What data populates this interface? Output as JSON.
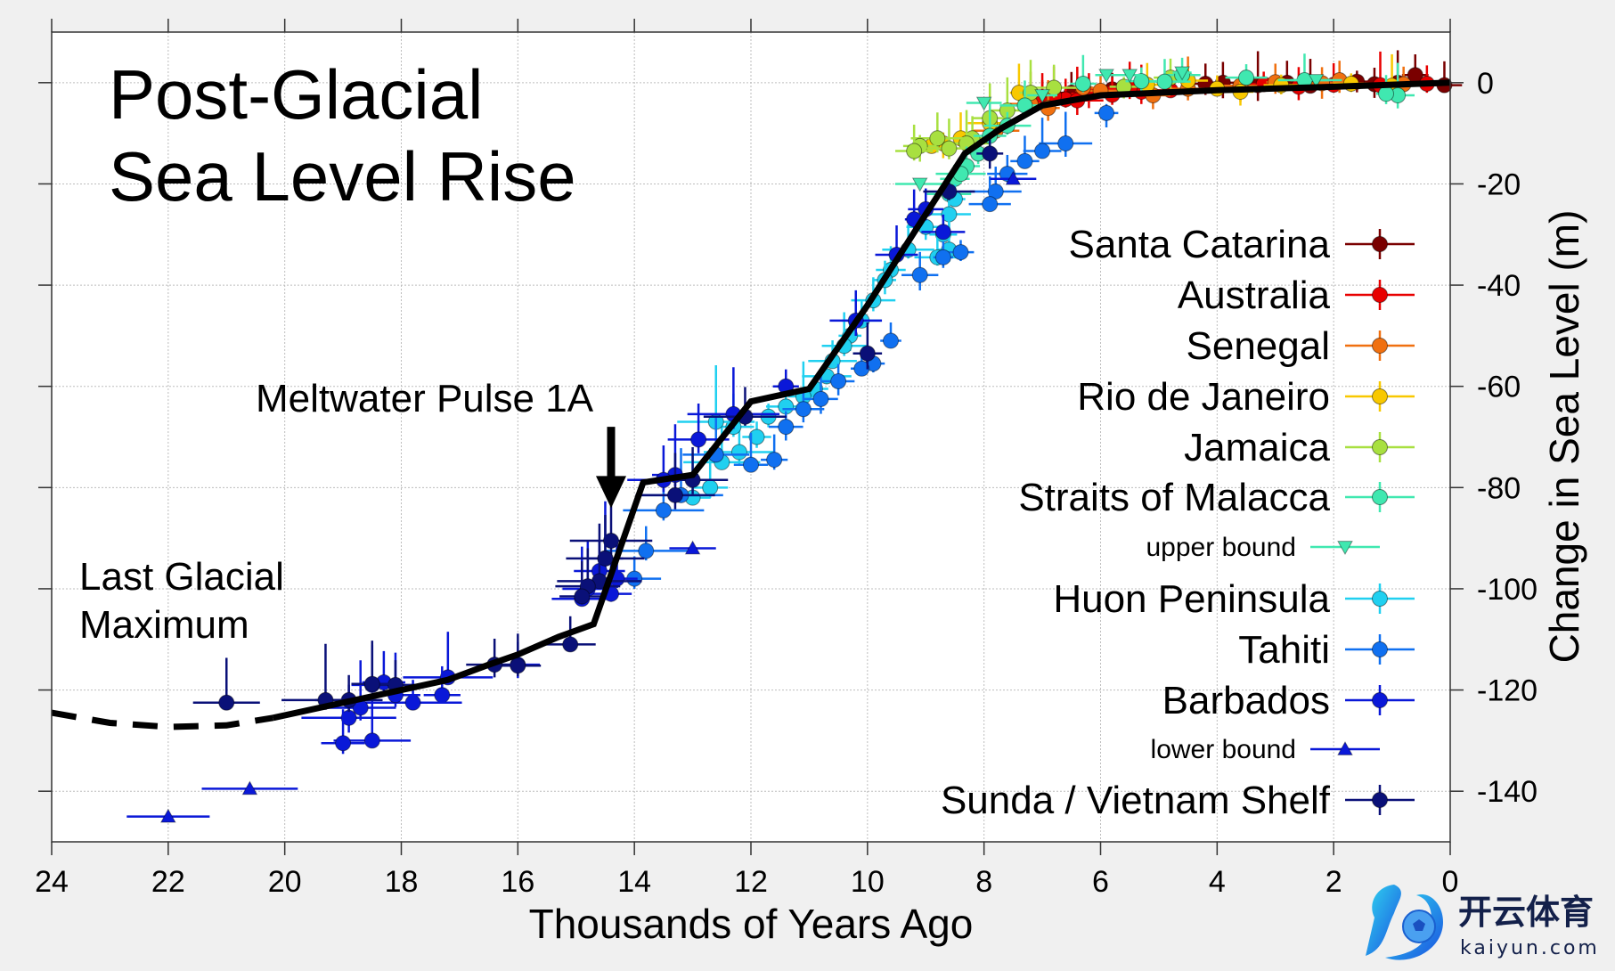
{
  "chart_data": {
    "type": "scatter",
    "title_lines": [
      "Post-Glacial",
      "Sea Level Rise"
    ],
    "xlabel": "Thousands of Years Ago",
    "ylabel": "Change in Sea Level (m)",
    "xlim": [
      24,
      0
    ],
    "ylim": [
      -150,
      10
    ],
    "x_ticks": [
      24,
      22,
      20,
      18,
      16,
      14,
      12,
      10,
      8,
      6,
      4,
      2,
      0
    ],
    "y_ticks": [
      0,
      -20,
      -40,
      -60,
      -80,
      -100,
      -120,
      -140
    ],
    "grid": true,
    "legend_position": "right",
    "annotations": [
      {
        "id": "mwp",
        "text": "Meltwater Pulse 1A",
        "arrow_x": 14.4,
        "arrow_y_from": -68,
        "arrow_y_to": -83
      },
      {
        "id": "lgm",
        "text_lines": [
          "Last Glacial",
          "Maximum"
        ]
      }
    ],
    "trend_line": {
      "name": "sea level reconstruction",
      "color": "#000000",
      "dashed": [
        [
          24,
          -124.5
        ],
        [
          23,
          -126.5
        ],
        [
          22,
          -127.3
        ],
        [
          21,
          -127
        ],
        [
          20.2,
          -125.5
        ]
      ],
      "solid": [
        [
          20.2,
          -125.5
        ],
        [
          19,
          -122.5
        ],
        [
          18,
          -120
        ],
        [
          17.2,
          -118
        ],
        [
          16.5,
          -115
        ],
        [
          16,
          -113
        ],
        [
          15.3,
          -109.5
        ],
        [
          14.7,
          -107
        ],
        [
          13.85,
          -79
        ],
        [
          13,
          -77.5
        ],
        [
          12,
          -63
        ],
        [
          11,
          -60.5
        ],
        [
          10,
          -44
        ],
        [
          9,
          -26
        ],
        [
          8.33,
          -14
        ],
        [
          7.7,
          -9
        ],
        [
          7,
          -4.5
        ],
        [
          6,
          -2.5
        ],
        [
          4,
          -1.5
        ],
        [
          2,
          -0.8
        ],
        [
          0,
          0
        ]
      ]
    },
    "series": [
      {
        "name": "Santa Catarina",
        "color": "#7a0000",
        "marker": "circle",
        "points": [
          [
            0.1,
            -0.5
          ],
          [
            0.6,
            1.5
          ],
          [
            0.9,
            0
          ],
          [
            1.3,
            -0.3
          ],
          [
            1.6,
            0.2
          ],
          [
            2.4,
            -0.6
          ],
          [
            2.8,
            0
          ],
          [
            3.3,
            -0.5
          ],
          [
            3.9,
            0
          ],
          [
            4.2,
            -0.2
          ],
          [
            5.8,
            -1.3
          ],
          [
            6.5,
            -2.0
          ],
          [
            7.0,
            -3.0
          ]
        ]
      },
      {
        "name": "Australia",
        "color": "#e80000",
        "marker": "circle",
        "points": [
          [
            0.4,
            -0.2
          ],
          [
            1.2,
            -0.5
          ],
          [
            2.0,
            -0.4
          ],
          [
            2.6,
            -0.8
          ],
          [
            3.2,
            -0.3
          ],
          [
            4.8,
            -1.5
          ],
          [
            5.3,
            -1.8
          ],
          [
            5.8,
            -2.4
          ],
          [
            6.2,
            -2.2
          ],
          [
            6.6,
            -3.3
          ],
          [
            7.0,
            -3.8
          ],
          [
            6.8,
            -2.6
          ],
          [
            6.4,
            -3.5
          ],
          [
            5.5,
            -1.0
          ]
        ]
      },
      {
        "name": "Senegal",
        "color": "#f07010",
        "marker": "circle",
        "points": [
          [
            0.8,
            -0.3
          ],
          [
            1.9,
            0.5
          ],
          [
            2.2,
            -0.1
          ],
          [
            3.0,
            0.1
          ],
          [
            3.6,
            -0.6
          ],
          [
            4.5,
            -1.2
          ],
          [
            5.1,
            -2.5
          ],
          [
            6.0,
            -1.6
          ],
          [
            6.9,
            -5.0
          ],
          [
            7.2,
            -4.2
          ],
          [
            7.8,
            -9.5
          ],
          [
            6.3,
            -1.0
          ]
        ]
      },
      {
        "name": "Rio de Janeiro",
        "color": "#f8c800",
        "marker": "circle",
        "points": [
          [
            1.0,
            -0.6
          ],
          [
            1.7,
            -0.2
          ],
          [
            2.9,
            -0.5
          ],
          [
            3.6,
            -1.8
          ],
          [
            4.0,
            -1.2
          ],
          [
            4.5,
            0.4
          ],
          [
            5.2,
            -0.4
          ],
          [
            7.4,
            -2.0
          ],
          [
            7.9,
            -8.0
          ],
          [
            8.4,
            -11.0
          ],
          [
            8.7,
            -12.0
          ],
          [
            8.9,
            -12.5
          ]
        ]
      },
      {
        "name": "Jamaica",
        "color": "#a8e040",
        "marker": "circle",
        "points": [
          [
            5.6,
            -0.8
          ],
          [
            4.8,
            1.0
          ],
          [
            6.8,
            -1.0
          ],
          [
            7.2,
            -2.0
          ],
          [
            7.6,
            -5.5
          ],
          [
            7.9,
            -7.0
          ],
          [
            8.2,
            -11.0
          ],
          [
            8.3,
            -12.0
          ],
          [
            8.8,
            -11.0
          ],
          [
            9.1,
            -12.5
          ],
          [
            9.2,
            -13.5
          ],
          [
            8.6,
            -13.0
          ]
        ]
      },
      {
        "name": "Straits of Malacca",
        "color": "#40e8b0",
        "marker": "circle",
        "points": [
          [
            0.9,
            -2.5
          ],
          [
            1.1,
            -2.2
          ],
          [
            2.5,
            0.5
          ],
          [
            3.5,
            1.0
          ],
          [
            4.6,
            1.5
          ],
          [
            4.9,
            0.2
          ],
          [
            5.3,
            0.3
          ],
          [
            6.3,
            -0.2
          ],
          [
            7.3,
            -4.5
          ],
          [
            7.6,
            -8.5
          ],
          [
            7.9,
            -10.5
          ],
          [
            8.1,
            -14.0
          ],
          [
            8.3,
            -16.5
          ],
          [
            8.5,
            -19.0
          ],
          [
            8.6,
            -22.0
          ],
          [
            8.4,
            -18.0
          ]
        ]
      },
      {
        "name": "upper bound",
        "color": "#40e8b0",
        "marker": "triangle-down",
        "points": [
          [
            5.5,
            1.5
          ],
          [
            5.9,
            1.5
          ],
          [
            4.6,
            2.0
          ],
          [
            7.0,
            -2.5
          ],
          [
            8.0,
            -4.0
          ],
          [
            9.1,
            -20.0
          ],
          [
            2.3,
            0.5
          ]
        ]
      },
      {
        "name": "Huon Peninsula",
        "color": "#20d0f0",
        "marker": "circle",
        "points": [
          [
            8.5,
            -23
          ],
          [
            8.6,
            -26
          ],
          [
            8.7,
            -30
          ],
          [
            8.6,
            -33
          ],
          [
            8.8,
            -34.5
          ],
          [
            9.0,
            -28.5
          ],
          [
            9.3,
            -33
          ],
          [
            9.6,
            -37
          ],
          [
            9.7,
            -39
          ],
          [
            9.9,
            -43
          ],
          [
            10.1,
            -47
          ],
          [
            10.3,
            -50
          ],
          [
            10.4,
            -52
          ],
          [
            10.6,
            -55
          ],
          [
            10.7,
            -58
          ],
          [
            10.9,
            -60.5
          ],
          [
            11.1,
            -62
          ],
          [
            11.4,
            -64
          ],
          [
            11.7,
            -66
          ],
          [
            11.9,
            -70
          ],
          [
            12.2,
            -73
          ],
          [
            12.5,
            -75
          ],
          [
            12.7,
            -80
          ],
          [
            13.0,
            -82
          ],
          [
            12.3,
            -68
          ],
          [
            12.6,
            -67
          ]
        ]
      },
      {
        "name": "Tahiti",
        "color": "#1070f0",
        "marker": "circle",
        "points": [
          [
            5.9,
            -6.0
          ],
          [
            6.6,
            -12.0
          ],
          [
            7.0,
            -13.5
          ],
          [
            7.3,
            -15.5
          ],
          [
            7.6,
            -18.0
          ],
          [
            7.8,
            -21.5
          ],
          [
            7.9,
            -24.0
          ],
          [
            8.4,
            -33.5
          ],
          [
            8.7,
            -34.5
          ],
          [
            9.1,
            -38.0
          ],
          [
            9.6,
            -51.0
          ],
          [
            9.9,
            -55.5
          ],
          [
            10.1,
            -56.5
          ],
          [
            10.5,
            -59.0
          ],
          [
            10.8,
            -62.5
          ],
          [
            11.1,
            -64.5
          ],
          [
            11.4,
            -68.0
          ],
          [
            11.6,
            -74.5
          ],
          [
            12.0,
            -75.5
          ],
          [
            12.6,
            -73.5
          ],
          [
            13.2,
            -81.5
          ],
          [
            13.5,
            -84.5
          ],
          [
            13.8,
            -92.5
          ],
          [
            14.0,
            -98.0
          ]
        ]
      },
      {
        "name": "Barbados",
        "color": "#0a18d8",
        "marker": "circle",
        "points": [
          [
            8.7,
            -29.5
          ],
          [
            9.0,
            -25.0
          ],
          [
            9.2,
            -27.0
          ],
          [
            9.5,
            -34.0
          ],
          [
            10.2,
            -47.0
          ],
          [
            11.4,
            -60.0
          ],
          [
            12.3,
            -65.5
          ],
          [
            12.9,
            -70.5
          ],
          [
            13.3,
            -77.5
          ],
          [
            13.5,
            -78.5
          ],
          [
            14.3,
            -98.0
          ],
          [
            14.4,
            -101.0
          ],
          [
            14.5,
            -94.0
          ],
          [
            14.6,
            -96.5
          ],
          [
            14.8,
            -100.0
          ],
          [
            14.9,
            -102.0
          ],
          [
            16.0,
            -115.0
          ],
          [
            17.2,
            -117.5
          ],
          [
            17.3,
            -121.0
          ],
          [
            17.8,
            -122.5
          ],
          [
            18.1,
            -121.0
          ],
          [
            18.3,
            -118.5
          ],
          [
            18.5,
            -119.0
          ],
          [
            18.7,
            -123.5
          ],
          [
            18.9,
            -125.5
          ],
          [
            18.5,
            -130.0
          ],
          [
            19.0,
            -130.5
          ]
        ]
      },
      {
        "name": "lower bound",
        "color": "#0a18d8",
        "marker": "triangle-up",
        "points": [
          [
            22.0,
            -145.0
          ],
          [
            20.6,
            -139.5
          ],
          [
            13.0,
            -92.0
          ],
          [
            7.5,
            -19.0
          ]
        ]
      },
      {
        "name": "Sunda / Vietnam Shelf",
        "color": "#0a1078",
        "marker": "circle",
        "points": [
          [
            7.9,
            -14.0
          ],
          [
            8.6,
            -21.5
          ],
          [
            10.0,
            -53.5
          ],
          [
            12.1,
            -66.0
          ],
          [
            13.3,
            -81.5
          ],
          [
            13.0,
            -78.5
          ],
          [
            14.4,
            -90.5
          ],
          [
            14.5,
            -94.0
          ],
          [
            14.6,
            -98.5
          ],
          [
            14.8,
            -99.5
          ],
          [
            14.9,
            -101.5
          ],
          [
            15.1,
            -111.0
          ],
          [
            16.0,
            -115.2
          ],
          [
            16.4,
            -115.0
          ],
          [
            18.1,
            -119.0
          ],
          [
            18.5,
            -118.8
          ],
          [
            18.9,
            -122.0
          ],
          [
            19.3,
            -122.0
          ],
          [
            21.0,
            -122.5
          ]
        ]
      }
    ]
  },
  "watermark": {
    "brand_cn": "开云体育",
    "brand_en": "kaiyun.com"
  }
}
